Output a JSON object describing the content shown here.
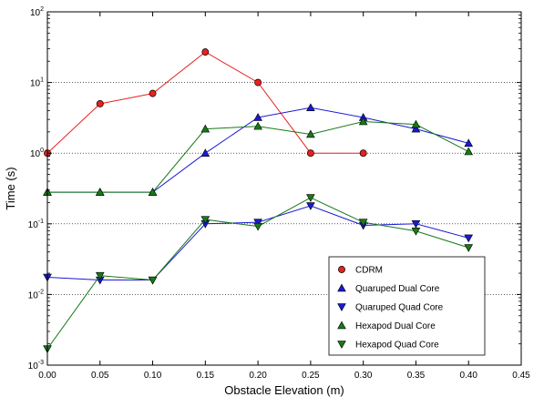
{
  "chart_data": {
    "type": "line",
    "title": "",
    "xlabel": "Obstacle Elevation (m)",
    "ylabel": "Time (s)",
    "xlim": [
      0,
      0.45
    ],
    "ylim": [
      0.001,
      100
    ],
    "yscale": "log",
    "grid": "horizontal major lines, dotted",
    "legend_position": "lower-right",
    "xticks": [
      "0.00",
      "0.05",
      "0.10",
      "0.15",
      "0.20",
      "0.25",
      "0.30",
      "0.35",
      "0.40",
      "0.45"
    ],
    "yticks": [
      {
        "value": 0.001,
        "base": "10",
        "exp": "-3"
      },
      {
        "value": 0.01,
        "base": "10",
        "exp": "-2"
      },
      {
        "value": 0.1,
        "base": "10",
        "exp": "-1"
      },
      {
        "value": 1,
        "base": "10",
        "exp": "0"
      },
      {
        "value": 10,
        "base": "10",
        "exp": "1"
      },
      {
        "value": 100,
        "base": "10",
        "exp": "2"
      }
    ],
    "series": [
      {
        "name": "CDRM",
        "color": "#e8211f",
        "marker": "circle",
        "x": [
          0.0,
          0.05,
          0.1,
          0.15,
          0.2,
          0.25,
          0.3
        ],
        "y": [
          1.0,
          5.0,
          7.0,
          27.0,
          10.0,
          1.0,
          1.0
        ]
      },
      {
        "name": "Quaruped Dual Core",
        "color": "#1a1ad6",
        "marker": "triangle-up",
        "x": [
          0.0,
          0.05,
          0.1,
          0.15,
          0.2,
          0.25,
          0.3,
          0.35,
          0.4
        ],
        "y": [
          0.28,
          0.28,
          0.28,
          1.0,
          3.2,
          4.4,
          3.2,
          2.2,
          1.38
        ]
      },
      {
        "name": "Quaruped Quad Core",
        "color": "#1a1ad6",
        "marker": "triangle-down",
        "x": [
          0.0,
          0.05,
          0.1,
          0.15,
          0.2,
          0.25,
          0.3,
          0.35,
          0.4
        ],
        "y": [
          0.0175,
          0.016,
          0.016,
          0.1,
          0.105,
          0.18,
          0.095,
          0.1,
          0.063
        ]
      },
      {
        "name": "Hexapod Dual Core",
        "color": "#177a17",
        "marker": "triangle-up",
        "x": [
          0.0,
          0.05,
          0.1,
          0.15,
          0.2,
          0.25,
          0.3,
          0.35,
          0.4
        ],
        "y": [
          0.28,
          0.28,
          0.28,
          2.2,
          2.4,
          1.85,
          2.8,
          2.55,
          1.05
        ]
      },
      {
        "name": "Hexapod Quad Core",
        "color": "#177a17",
        "marker": "triangle-down",
        "x": [
          0.0,
          0.05,
          0.1,
          0.15,
          0.2,
          0.25,
          0.3,
          0.35,
          0.4
        ],
        "y": [
          0.0017,
          0.0185,
          0.016,
          0.115,
          0.092,
          0.235,
          0.105,
          0.079,
          0.046
        ]
      }
    ]
  }
}
